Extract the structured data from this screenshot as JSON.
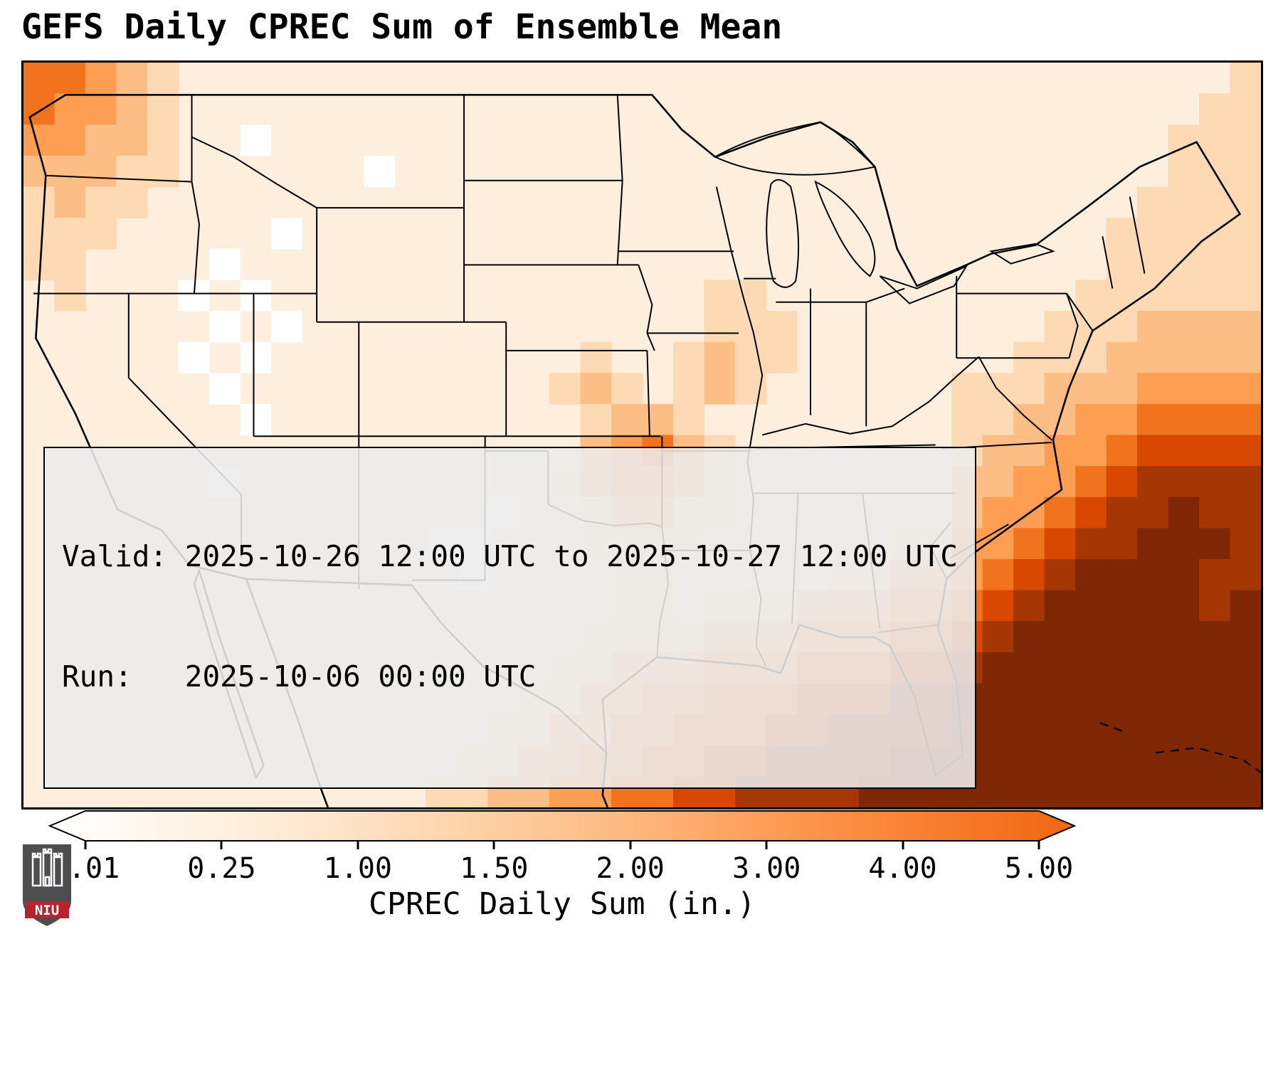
{
  "title": "GEFS Daily CPREC Sum of Ensemble Mean",
  "info_box": {
    "valid_line": "Valid: 2025-10-26 12:00 UTC to 2025-10-27 12:00 UTC",
    "run_line": "Run:   2025-10-06 00:00 UTC"
  },
  "colorbar": {
    "label": "CPREC Daily Sum (in.)",
    "ticks": [
      "0.01",
      "0.25",
      "1.00",
      "1.50",
      "2.00",
      "3.00",
      "4.00",
      "5.00"
    ],
    "tick_values": [
      0.01,
      0.25,
      1.0,
      1.5,
      2.0,
      3.0,
      4.0,
      5.0
    ],
    "gradient": [
      "#ffffff",
      "#fff3e4",
      "#fee3c8",
      "#fdd0a3",
      "#fdb77c",
      "#fd9a52",
      "#f87f30",
      "#ef6612"
    ],
    "under_color": "#ffffff",
    "over_color": "#d95a0b",
    "extend": "both"
  },
  "logo": {
    "text": "NIU",
    "shield_color": "#4e4e50",
    "banner_color": "#b6252f"
  },
  "chart_data": {
    "type": "heatmap",
    "title": "GEFS Daily CPREC Sum of Ensemble Mean",
    "units": "in.",
    "colorbar_label": "CPREC Daily Sum (in.)",
    "valid": "2025-10-26 12:00 UTC to 2025-10-27 12:00 UTC",
    "run": "2025-10-06 00:00 UTC",
    "region": "Continental United States with surrounding ocean, Mexico and southern Canada",
    "bins": {
      "0": "< 0.01 in (white)",
      "1": "0.01 - 0.25 in",
      "2": "0.25 - 1.00 in",
      "3": "1.00 - 1.50 in",
      "4": "1.50 - 2.00 in",
      "5": "2.00 - 3.00 in",
      "6": "3.00 - 4.00 in",
      "7": "4.00 - 5.00 in",
      "8": "> 5.00 in (dark brown)"
    },
    "palette": {
      "0": "#ffffff",
      "1": "#fdeedd",
      "2": "#fdd9b4",
      "3": "#fdbe85",
      "4": "#fd9e53",
      "5": "#f1731d",
      "6": "#d94801",
      "7": "#a63603",
      "8": "#7f2704"
    },
    "grid_note": "40 cols x 24 rows, west-to-east / north-to-south; digit = precipitation bin level",
    "grid": [
      "5543211111111111111111111111111111111112",
      "5443211111111111111111111111111111111122",
      "4433211011111111111111111111111111111222",
      "3332211111101111111111111111111111111222",
      "2322111111111111111111111111111111112222",
      "2221111101111111111111111111111111122222",
      "2211110111111111111111111111111111122222",
      "1211101011111111111111221111111111222222",
      "1111110101111111111111222111111112223333",
      "1111101011111111112112322111111122233333",
      "1111110111111111123212321111112223334444",
      "1111111011111111112332111111112233445555",
      "1111111111111111113453211111112334456666",
      "1111110111111111123443211111113344567777",
      "1111111111111110112332211111113445677877",
      "1111111111111001112222111111224456778887",
      "1111111111111101111221111122334567888877",
      "1111111111111111111221222333445678888878",
      "1111111111111111112222333444556788888888",
      "1111111111111111122333444555667888888888",
      "1111111111111111223344555666778888888888",
      "1111111111111112233445556677778888888888",
      "1111111111111122334455667777888888888888",
      "1111111111111223344556677778888888888888"
    ]
  }
}
